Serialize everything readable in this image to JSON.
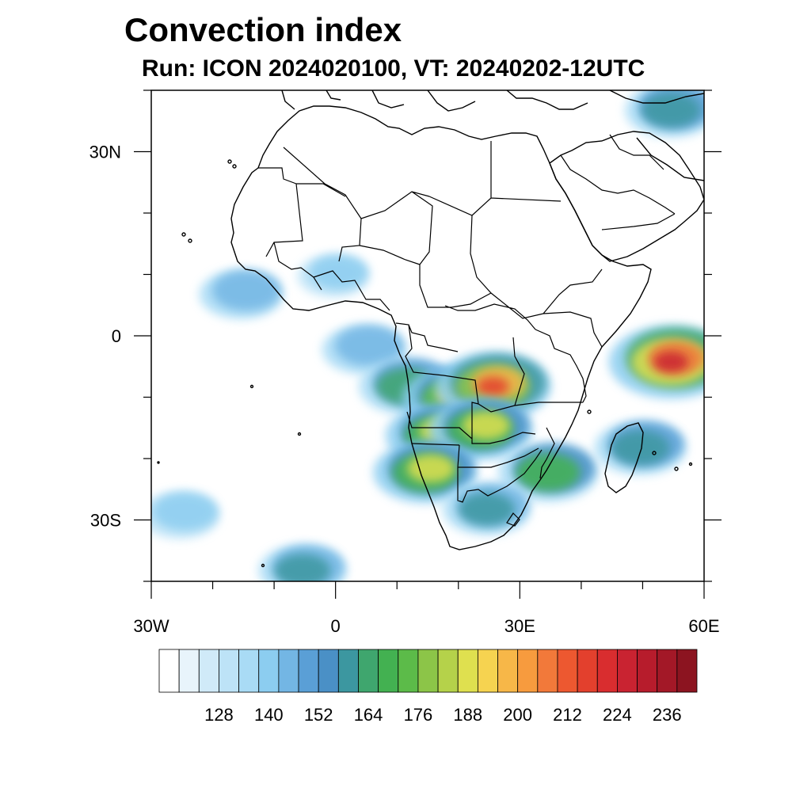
{
  "title": "Convection index",
  "subtitle": "Run: ICON 2024020100,  VT: 20240202-12UTC",
  "map": {
    "lon_range": [
      -30,
      60
    ],
    "lat_range": [
      -40,
      40
    ],
    "lat_labels": [
      {
        "lat": 30,
        "text": "30N"
      },
      {
        "lat": 0,
        "text": "0"
      },
      {
        "lat": -30,
        "text": "30S"
      }
    ],
    "lon_labels": [
      {
        "lon": -30,
        "text": "30W"
      },
      {
        "lon": 0,
        "text": "0"
      },
      {
        "lon": 30,
        "text": "30E"
      },
      {
        "lon": 60,
        "text": "60E"
      }
    ],
    "coastline_color": "#000000",
    "land_fill": "none",
    "ocean_fill": "none"
  },
  "colorbar": {
    "colors": [
      "#ffffff",
      "#e8f4fb",
      "#d0eaf8",
      "#bde3f7",
      "#a9dbf5",
      "#8ccdf0",
      "#73b6e4",
      "#5a9fd6",
      "#4a90c6",
      "#3c97a0",
      "#3fa66e",
      "#43b151",
      "#5cbb49",
      "#8cc548",
      "#b5d24a",
      "#dfe04f",
      "#f6d350",
      "#f7b748",
      "#f79b3e",
      "#f2793a",
      "#ed5830",
      "#e3402d",
      "#d92d2f",
      "#c92331",
      "#b71c2c",
      "#a31827",
      "#8c1420"
    ],
    "labels": [
      "128",
      "140",
      "152",
      "164",
      "176",
      "188",
      "200",
      "212",
      "224",
      "236"
    ]
  },
  "convection_areas": [
    {
      "lon": 5,
      "lat": -2,
      "intensity": 0.45
    },
    {
      "lon": 12,
      "lat": -8,
      "intensity": 0.6
    },
    {
      "lon": 20,
      "lat": -10,
      "intensity": 0.75
    },
    {
      "lon": 26,
      "lat": -8,
      "intensity": 0.85
    },
    {
      "lon": 17,
      "lat": -16,
      "intensity": 0.7
    },
    {
      "lon": 24,
      "lat": -15,
      "intensity": 0.7
    },
    {
      "lon": 15,
      "lat": -22,
      "intensity": 0.7
    },
    {
      "lon": 35,
      "lat": -22,
      "intensity": 0.65
    },
    {
      "lon": 55,
      "lat": -4,
      "intensity": 0.95
    },
    {
      "lon": 50,
      "lat": -18,
      "intensity": 0.55
    },
    {
      "lon": 25,
      "lat": -28,
      "intensity": 0.5
    },
    {
      "lon": -15,
      "lat": 7,
      "intensity": 0.45
    },
    {
      "lon": -25,
      "lat": -29,
      "intensity": 0.4
    },
    {
      "lon": -5,
      "lat": -38,
      "intensity": 0.5
    },
    {
      "lon": 55,
      "lat": 37,
      "intensity": 0.55
    },
    {
      "lon": 0,
      "lat": 10,
      "intensity": 0.3
    }
  ]
}
